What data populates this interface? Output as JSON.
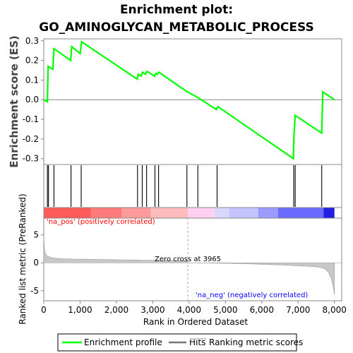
{
  "chart_data": {
    "type": "line",
    "title_line1": "Enrichment plot:",
    "title_line2": "GO_AMINOGLYCAN_METABOLIC_PROCESS",
    "es_panel": {
      "ylabel": "Enrichment score (ES)",
      "ylim": [
        -0.33,
        0.31
      ],
      "yticks": [
        "0.3",
        "0.2",
        "0.1",
        "0.0",
        "-0.1",
        "-0.2",
        "-0.3"
      ],
      "ytick_values": [
        0.3,
        0.2,
        0.1,
        0.0,
        -0.1,
        -0.2,
        -0.3
      ],
      "line_color": "#00ff00",
      "points": [
        [
          0,
          0.0
        ],
        [
          100,
          -0.01
        ],
        [
          120,
          0.17
        ],
        [
          250,
          0.155
        ],
        [
          280,
          0.26
        ],
        [
          740,
          0.2
        ],
        [
          770,
          0.27
        ],
        [
          1000,
          0.235
        ],
        [
          1040,
          0.295
        ],
        [
          2570,
          0.105
        ],
        [
          2600,
          0.13
        ],
        [
          2680,
          0.12
        ],
        [
          2720,
          0.14
        ],
        [
          2800,
          0.13
        ],
        [
          2840,
          0.145
        ],
        [
          3050,
          0.12
        ],
        [
          3090,
          0.135
        ],
        [
          3130,
          0.13
        ],
        [
          3170,
          0.14
        ],
        [
          3950,
          0.04
        ],
        [
          4250,
          0.01
        ],
        [
          4750,
          -0.05
        ],
        [
          4790,
          -0.035
        ],
        [
          6870,
          -0.3
        ],
        [
          6885,
          -0.19
        ],
        [
          6920,
          -0.08
        ],
        [
          7650,
          -0.17
        ],
        [
          7680,
          0.04
        ],
        [
          8000,
          0.0
        ]
      ]
    },
    "hits": [
      100,
      130,
      280,
      750,
      1030,
      2580,
      2710,
      2830,
      3060,
      3160,
      3940,
      4240,
      4770,
      6880,
      6920,
      7650
    ],
    "ranked_panel": {
      "ylabel": "Ranked list metric (PreRanked)",
      "ylim": [
        -6.8,
        8.0
      ],
      "yticks": [
        "5",
        "0",
        "-5"
      ],
      "ytick_values": [
        5,
        0,
        -5
      ],
      "zero_cross_label": "Zero cross at 3965",
      "zero_cross": 3965,
      "pos_label": "'na_pos' (positively correlated)",
      "neg_label": "'na_neg' (negatively correlated)",
      "pos_color": "#ff0000",
      "neg_color": "#0000ff"
    },
    "xlabel": "Rank in Ordered Dataset",
    "xlim": [
      0,
      8200
    ],
    "xticks": [
      "0",
      "1,000",
      "2,000",
      "3,000",
      "4,000",
      "5,000",
      "6,000",
      "7,000",
      "8,000"
    ],
    "xtick_values": [
      0,
      1000,
      2000,
      3000,
      4000,
      5000,
      6000,
      7000,
      8000
    ],
    "dataset_size": 8000,
    "heatmap_colors": [
      "#ff5b5b",
      "#ff7a7a",
      "#ff9a9a",
      "#ffbcbc",
      "#ffd0f0",
      "#d8d8ff",
      "#c4c4ff",
      "#9a9aff",
      "#6a6aff",
      "#2020e0"
    ],
    "heatmap_bounds": [
      0,
      1300,
      2150,
      2950,
      3965,
      4700,
      5100,
      5900,
      6450,
      7700,
      8000
    ],
    "legend": [
      {
        "label": "Enrichment profile",
        "color": "#00ff00"
      },
      {
        "label": "Hits",
        "color": "#777777"
      },
      {
        "label": "Ranking metric scores",
        "color": "#cccccc"
      }
    ]
  }
}
